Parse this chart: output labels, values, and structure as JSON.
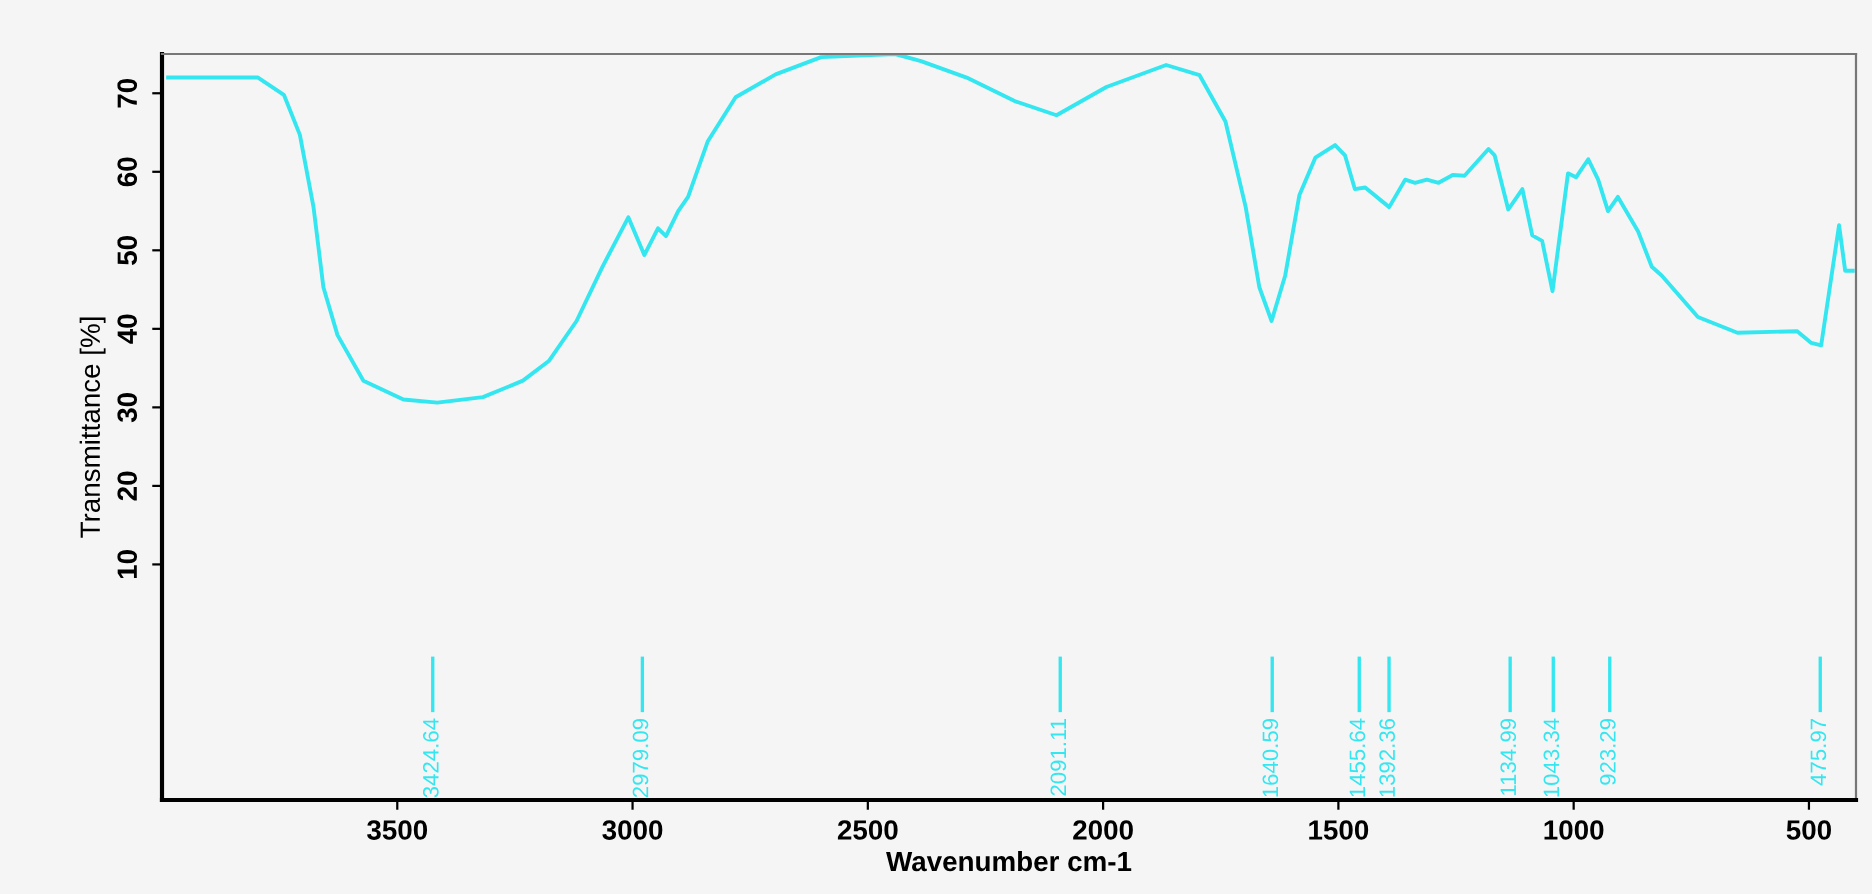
{
  "chart_data": {
    "type": "line",
    "xlabel": "Wavenumber cm-1",
    "ylabel": "Transmittance [%]",
    "xlim": [
      4000,
      400
    ],
    "ylim": [
      -20,
      75
    ],
    "xticks": [
      3500,
      3000,
      2500,
      2000,
      1500,
      1000,
      500
    ],
    "yticks": [
      10,
      20,
      30,
      40,
      50,
      60,
      70
    ],
    "grid": false,
    "legend": false,
    "marker": "none",
    "line_style": "solid",
    "x": [
      3987,
      3796,
      3741,
      3707,
      3678,
      3657,
      3627,
      3572,
      3487,
      3415,
      3318,
      3233,
      3178,
      3119,
      3064,
      3009,
      2975,
      2946,
      2929,
      2903,
      2882,
      2840,
      2781,
      2696,
      2599,
      2442,
      2387,
      2290,
      2188,
      2099,
      1993,
      1866,
      1795,
      1740,
      1697,
      1668,
      1642,
      1613,
      1583,
      1549,
      1507,
      1486,
      1465,
      1443,
      1392,
      1358,
      1337,
      1312,
      1287,
      1257,
      1232,
      1181,
      1168,
      1139,
      1109,
      1088,
      1067,
      1045,
      1012,
      995,
      969,
      948,
      927,
      906,
      863,
      834,
      813,
      736,
      652,
      525,
      495,
      474,
      436,
      423,
      407
    ],
    "series": [
      {
        "color": "#33e6f0",
        "values": [
          72,
          72,
          69.8,
          64.7,
          55.5,
          45.3,
          39.2,
          33.4,
          31,
          30.6,
          31.3,
          33.4,
          35.9,
          41,
          47.9,
          54.2,
          49.4,
          52.8,
          51.8,
          55,
          56.8,
          63.9,
          69.5,
          72.4,
          74.6,
          75,
          74.1,
          72,
          69,
          67.2,
          70.8,
          73.6,
          72.3,
          66.4,
          55.5,
          45.3,
          41,
          46.8,
          57,
          61.8,
          63.4,
          62.1,
          57.8,
          58,
          55.5,
          59,
          58.6,
          59,
          58.6,
          59.6,
          59.5,
          62.9,
          62.1,
          55.2,
          57.8,
          51.9,
          51.2,
          44.8,
          59.8,
          59.3,
          61.6,
          59,
          55,
          56.8,
          52.4,
          47.9,
          46.8,
          41.5,
          39.5,
          39.7,
          38.2,
          37.9,
          53.2,
          47.4,
          47.4
        ]
      }
    ],
    "annotations": [
      "3424.64",
      "2979.09",
      "2091.11",
      "1640.59",
      "1455.64",
      "1392.36",
      "1134.99",
      "1043.34",
      "923.29",
      "475.97"
    ]
  }
}
